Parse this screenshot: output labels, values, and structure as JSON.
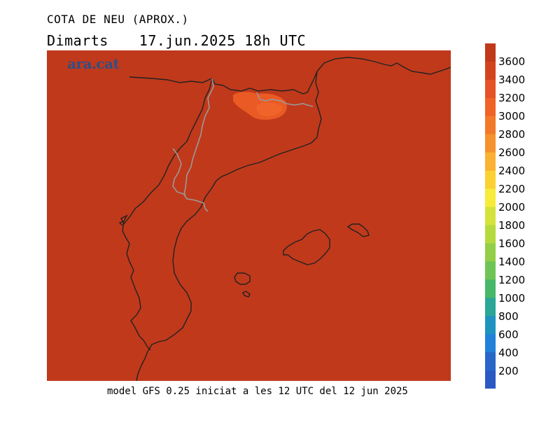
{
  "title": "COTA DE NEU (APROX.)",
  "subtitle": {
    "day": "Dimarts",
    "datetime": "17.jun.2025 18h UTC"
  },
  "logo_text": "ara.cat",
  "footer": "model GFS 0.25 iniciat a les 12 UTC del 12 jun 2025",
  "map": {
    "background_color": "#c0391b",
    "patch_color": "#ea5a24",
    "coast_color": "#222222",
    "border_color": "#9a9a9a"
  },
  "colorbar": {
    "labels": [
      "3600",
      "3400",
      "3200",
      "3000",
      "2800",
      "2600",
      "2400",
      "2200",
      "2000",
      "1800",
      "1600",
      "1400",
      "1200",
      "1000",
      "800",
      "600",
      "400",
      "200"
    ],
    "colors": [
      "#c0391b",
      "#d2441e",
      "#e55226",
      "#ef6327",
      "#f2792a",
      "#f6922c",
      "#fbb131",
      "#fbd133",
      "#f7ec3a",
      "#d4e33c",
      "#b5da3e",
      "#92cf46",
      "#6ec555",
      "#47b769",
      "#2aa797",
      "#1f93bf",
      "#1f82d8",
      "#2867c8",
      "#2b59c4"
    ]
  }
}
